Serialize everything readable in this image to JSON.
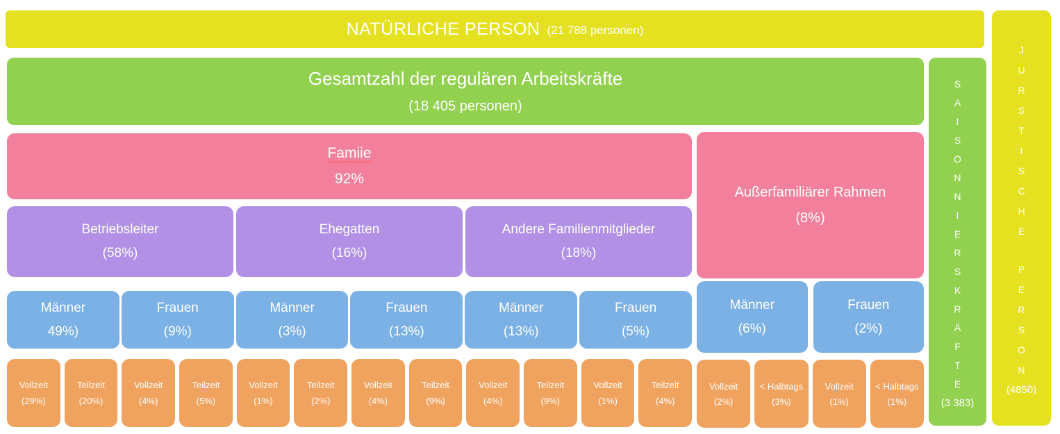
{
  "natural_person": {
    "title": "NATÜRLICHE PERSON",
    "count": "(21 788 personen)"
  },
  "regular_workforce": {
    "title": "Gesamtzahl der regulären Arbeitskräfte",
    "count": "(18 405 personen)"
  },
  "family": {
    "label": "Famiie",
    "value": "92%"
  },
  "non_family": {
    "label": "Außerfamiliärer Rahmen",
    "value": "(8%)"
  },
  "family_categories": [
    {
      "label": "Betriebsleiter",
      "value": "(58%)"
    },
    {
      "label": "Ehegatten",
      "value": "(16%)"
    },
    {
      "label": "Andere Familienmitglieder",
      "value": "(18%)"
    }
  ],
  "gender_boxes": [
    {
      "label": "Männer",
      "value": "49%)"
    },
    {
      "label": "Frauen",
      "value": "(9%)"
    },
    {
      "label": "Männer",
      "value": "(3%)"
    },
    {
      "label": "Frauen",
      "value": "(13%)"
    },
    {
      "label": "Männer",
      "value": "(13%)"
    },
    {
      "label": "Frauen",
      "value": "(5%)"
    },
    {
      "label": "Männer",
      "value": "(6%)"
    },
    {
      "label": "Frauen",
      "value": "(2%)"
    }
  ],
  "worktime_boxes": [
    {
      "label": "Vollzeit",
      "value": "(29%)"
    },
    {
      "label": "Teilzeit",
      "value": "(20%)"
    },
    {
      "label": "Vollzeit",
      "value": "(4%)"
    },
    {
      "label": "Teilzeit",
      "value": "(5%)"
    },
    {
      "label": "Vollzeit",
      "value": "(1%)"
    },
    {
      "label": "Teilzeit",
      "value": "(2%)"
    },
    {
      "label": "Vollzeit",
      "value": "(4%)"
    },
    {
      "label": "Teilzeit",
      "value": "(9%)"
    },
    {
      "label": "Vollzeit",
      "value": "(4%)"
    },
    {
      "label": "Teilzeit",
      "value": "(9%)"
    },
    {
      "label": "Vollzeit",
      "value": "(1%)"
    },
    {
      "label": "Teilzeit",
      "value": "(4%)"
    },
    {
      "label": "Vollzeit",
      "value": "(2%)"
    },
    {
      "label": "< Halbtags",
      "value": "(3%)"
    },
    {
      "label": "Vollzeit",
      "value": "(1%)"
    },
    {
      "label": "< Halbtags",
      "value": "(1%)"
    }
  ],
  "seasonal_workers": {
    "vertical_label": "SAISONNIERSKRÄFTE",
    "count": "(3 383)"
  },
  "legal_person": {
    "vertical_word1": "JURSTISCHE",
    "vertical_word2": "PERSON",
    "count": "(4850)"
  },
  "colors": {
    "yellow": "#e5e020",
    "green": "#92d050",
    "pink": "#f2809d",
    "purple": "#b190e6",
    "blue": "#7bb1e4",
    "orange": "#f0a35e",
    "text": "#ffffff",
    "spellcheck_underline": "#ff5b5b"
  }
}
